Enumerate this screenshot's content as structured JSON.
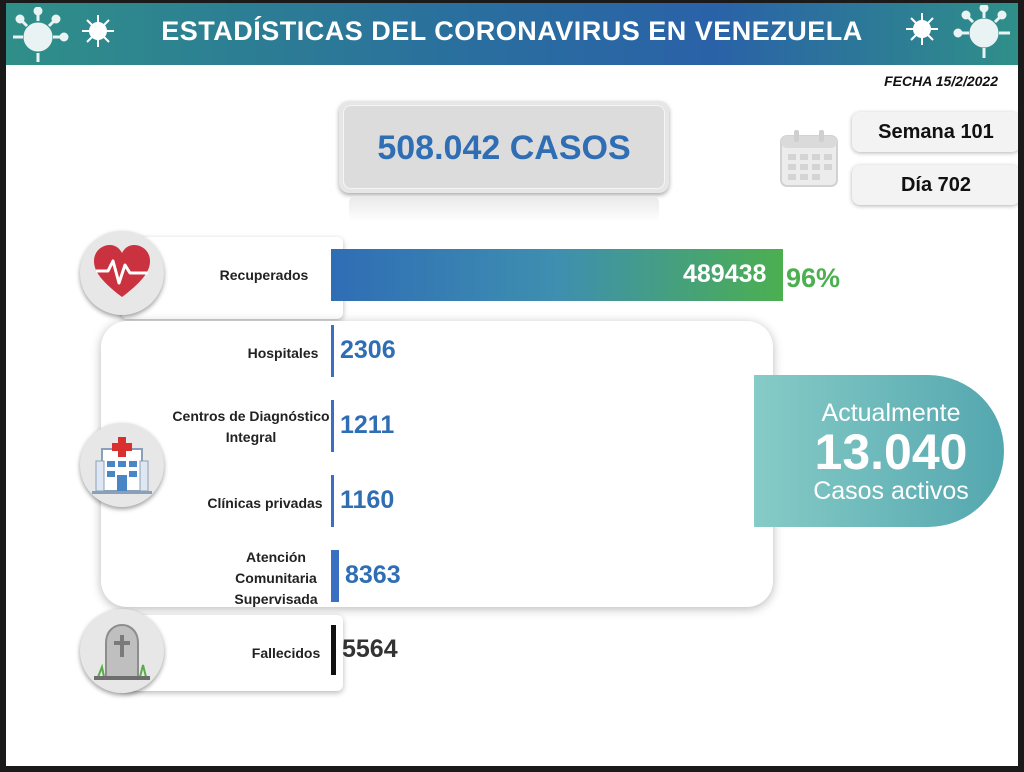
{
  "banner": {
    "title": "ESTADÍSTICAS DEL CORONAVIRUS EN VENEZUELA"
  },
  "fecha": "FECHA 15/2/2022",
  "total": "508.042 CASOS",
  "semana": "Semana 101",
  "dia": "Día 702",
  "active": {
    "label_top": "Actualmente",
    "value": "13.040",
    "label_bottom": "Casos activos"
  },
  "icons": {
    "recovered": "heart-pulse-icon",
    "health": "hospital-icon",
    "deceased": "tombstone-icon",
    "calendar": "calendar-icon",
    "virus": "virus-icon"
  },
  "colors": {
    "teal": "#2f8f88",
    "blue": "#2f6db5",
    "green": "#4caf50"
  },
  "chart_data": {
    "type": "bar",
    "orientation": "horizontal",
    "categories": [
      "Recuperados",
      "Hospitales",
      "Centros de Diagnóstico Integral",
      "Clínicas privadas",
      "Atención Comunitaria Supervisada",
      "Fallecidos"
    ],
    "values": [
      489438,
      2306,
      1211,
      1160,
      8363,
      5564
    ],
    "value_labels": [
      "489438",
      "2306",
      "1211",
      "1160",
      "8363",
      "5564"
    ],
    "percent_label": "96%",
    "total": 508042
  }
}
